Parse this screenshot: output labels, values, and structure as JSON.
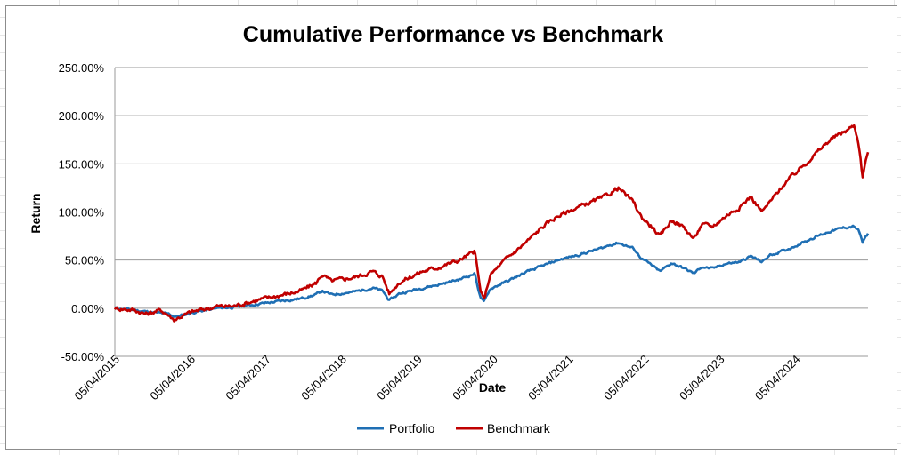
{
  "chart_data": {
    "type": "line",
    "title": "Cumulative Performance vs Benchmark",
    "xlabel": "Date",
    "ylabel": "Return",
    "ylim": [
      -0.5,
      2.5
    ],
    "y_ticks": [
      2.5,
      2.0,
      1.5,
      1.0,
      0.5,
      0.0,
      -0.5
    ],
    "y_tick_labels": [
      "250.00%",
      "200.00%",
      "150.00%",
      "100.00%",
      "50.00%",
      "0.00%",
      "-50.00%"
    ],
    "x_range": [
      2015.34,
      2025.3
    ],
    "x_tick_positions": [
      2015.34,
      2016.34,
      2017.34,
      2018.34,
      2019.34,
      2020.34,
      2021.34,
      2022.34,
      2023.34,
      2024.34
    ],
    "x_tick_labels": [
      "05/04/2015",
      "05/04/2016",
      "05/04/2017",
      "05/04/2018",
      "05/04/2019",
      "05/04/2020",
      "05/04/2021",
      "05/04/2022",
      "05/04/2023",
      "05/04/2024"
    ],
    "grid": "horizontal",
    "legend_position": "bottom",
    "series": [
      {
        "name": "Portfolio",
        "color": "#1f6fb4",
        "points": [
          [
            2015.34,
            0.0
          ],
          [
            2015.6,
            -0.02
          ],
          [
            2015.8,
            -0.04
          ],
          [
            2016.05,
            -0.06
          ],
          [
            2016.15,
            -0.09
          ],
          [
            2016.4,
            -0.04
          ],
          [
            2016.7,
            0.0
          ],
          [
            2016.9,
            0.01
          ],
          [
            2017.2,
            0.04
          ],
          [
            2017.5,
            0.07
          ],
          [
            2017.8,
            0.1
          ],
          [
            2018.0,
            0.14
          ],
          [
            2018.08,
            0.18
          ],
          [
            2018.2,
            0.14
          ],
          [
            2018.5,
            0.17
          ],
          [
            2018.75,
            0.21
          ],
          [
            2018.88,
            0.18
          ],
          [
            2018.97,
            0.08
          ],
          [
            2019.1,
            0.15
          ],
          [
            2019.4,
            0.21
          ],
          [
            2019.6,
            0.24
          ],
          [
            2019.9,
            0.3
          ],
          [
            2020.1,
            0.36
          ],
          [
            2020.17,
            0.12
          ],
          [
            2020.22,
            0.06
          ],
          [
            2020.3,
            0.2
          ],
          [
            2020.5,
            0.27
          ],
          [
            2020.8,
            0.38
          ],
          [
            2021.0,
            0.44
          ],
          [
            2021.2,
            0.5
          ],
          [
            2021.5,
            0.56
          ],
          [
            2021.8,
            0.63
          ],
          [
            2021.9,
            0.66
          ],
          [
            2022.0,
            0.68
          ],
          [
            2022.2,
            0.62
          ],
          [
            2022.3,
            0.52
          ],
          [
            2022.45,
            0.44
          ],
          [
            2022.55,
            0.38
          ],
          [
            2022.7,
            0.47
          ],
          [
            2022.85,
            0.42
          ],
          [
            2023.0,
            0.36
          ],
          [
            2023.1,
            0.43
          ],
          [
            2023.25,
            0.41
          ],
          [
            2023.4,
            0.46
          ],
          [
            2023.6,
            0.48
          ],
          [
            2023.75,
            0.54
          ],
          [
            2023.9,
            0.48
          ],
          [
            2024.0,
            0.55
          ],
          [
            2024.2,
            0.6
          ],
          [
            2024.4,
            0.67
          ],
          [
            2024.6,
            0.74
          ],
          [
            2024.8,
            0.8
          ],
          [
            2025.0,
            0.84
          ],
          [
            2025.12,
            0.85
          ],
          [
            2025.18,
            0.8
          ],
          [
            2025.23,
            0.68
          ],
          [
            2025.27,
            0.74
          ],
          [
            2025.3,
            0.77
          ]
        ]
      },
      {
        "name": "Benchmark",
        "color": "#c00000",
        "points": [
          [
            2015.34,
            0.0
          ],
          [
            2015.6,
            -0.02
          ],
          [
            2015.75,
            -0.06
          ],
          [
            2015.95,
            -0.02
          ],
          [
            2016.05,
            -0.07
          ],
          [
            2016.12,
            -0.12
          ],
          [
            2016.35,
            -0.04
          ],
          [
            2016.7,
            0.02
          ],
          [
            2016.9,
            0.02
          ],
          [
            2017.2,
            0.08
          ],
          [
            2017.5,
            0.13
          ],
          [
            2017.8,
            0.18
          ],
          [
            2018.0,
            0.26
          ],
          [
            2018.08,
            0.35
          ],
          [
            2018.2,
            0.28
          ],
          [
            2018.5,
            0.32
          ],
          [
            2018.75,
            0.38
          ],
          [
            2018.88,
            0.33
          ],
          [
            2018.97,
            0.15
          ],
          [
            2019.1,
            0.27
          ],
          [
            2019.4,
            0.38
          ],
          [
            2019.6,
            0.42
          ],
          [
            2019.9,
            0.5
          ],
          [
            2020.1,
            0.59
          ],
          [
            2020.17,
            0.2
          ],
          [
            2020.22,
            0.08
          ],
          [
            2020.3,
            0.34
          ],
          [
            2020.5,
            0.5
          ],
          [
            2020.8,
            0.7
          ],
          [
            2021.0,
            0.85
          ],
          [
            2021.2,
            0.96
          ],
          [
            2021.5,
            1.06
          ],
          [
            2021.8,
            1.15
          ],
          [
            2021.9,
            1.2
          ],
          [
            2022.0,
            1.25
          ],
          [
            2022.2,
            1.1
          ],
          [
            2022.3,
            0.95
          ],
          [
            2022.45,
            0.84
          ],
          [
            2022.55,
            0.74
          ],
          [
            2022.7,
            0.92
          ],
          [
            2022.85,
            0.85
          ],
          [
            2023.0,
            0.72
          ],
          [
            2023.1,
            0.87
          ],
          [
            2023.25,
            0.85
          ],
          [
            2023.4,
            0.95
          ],
          [
            2023.6,
            1.05
          ],
          [
            2023.75,
            1.16
          ],
          [
            2023.9,
            1.0
          ],
          [
            2024.0,
            1.1
          ],
          [
            2024.2,
            1.3
          ],
          [
            2024.4,
            1.45
          ],
          [
            2024.6,
            1.6
          ],
          [
            2024.8,
            1.75
          ],
          [
            2025.0,
            1.84
          ],
          [
            2025.12,
            1.9
          ],
          [
            2025.18,
            1.7
          ],
          [
            2025.23,
            1.35
          ],
          [
            2025.27,
            1.55
          ],
          [
            2025.3,
            1.62
          ]
        ]
      }
    ]
  }
}
